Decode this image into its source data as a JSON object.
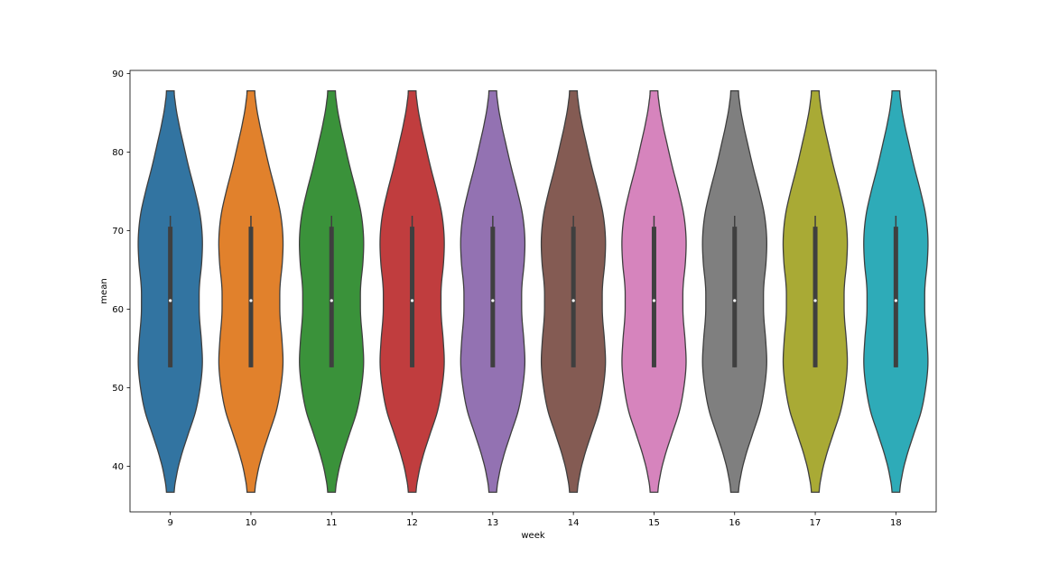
{
  "chart_data": {
    "type": "violin",
    "title": "",
    "xlabel": "week",
    "ylabel": "mean",
    "categories": [
      "9",
      "10",
      "11",
      "12",
      "13",
      "14",
      "15",
      "16",
      "17",
      "18"
    ],
    "ylim": [
      34.2,
      90.4
    ],
    "yticks": [
      40,
      50,
      60,
      70,
      80,
      90
    ],
    "colors": [
      "#3274a1",
      "#e1812c",
      "#3a923a",
      "#c03d3e",
      "#9372b2",
      "#845b53",
      "#d684bd",
      "#7f7f7f",
      "#a9aa35",
      "#2eabb8"
    ],
    "distribution": {
      "min": 36.7,
      "max": 87.8,
      "median": 61.1,
      "q1": 52.6,
      "q3": 70.5,
      "whisker_low": 52.6,
      "whisker_high": 71.9,
      "density_profile": [
        [
          36.7,
          0.12
        ],
        [
          38.5,
          0.18
        ],
        [
          41.0,
          0.32
        ],
        [
          44.0,
          0.55
        ],
        [
          47.0,
          0.79
        ],
        [
          50.0,
          0.93
        ],
        [
          53.0,
          1.0
        ],
        [
          56.0,
          0.97
        ],
        [
          59.0,
          0.91
        ],
        [
          61.0,
          0.9
        ],
        [
          63.0,
          0.91
        ],
        [
          66.0,
          0.98
        ],
        [
          69.0,
          1.0
        ],
        [
          72.0,
          0.93
        ],
        [
          75.0,
          0.77
        ],
        [
          78.0,
          0.58
        ],
        [
          81.0,
          0.41
        ],
        [
          84.0,
          0.25
        ],
        [
          86.5,
          0.15
        ],
        [
          87.8,
          0.12
        ]
      ]
    }
  }
}
